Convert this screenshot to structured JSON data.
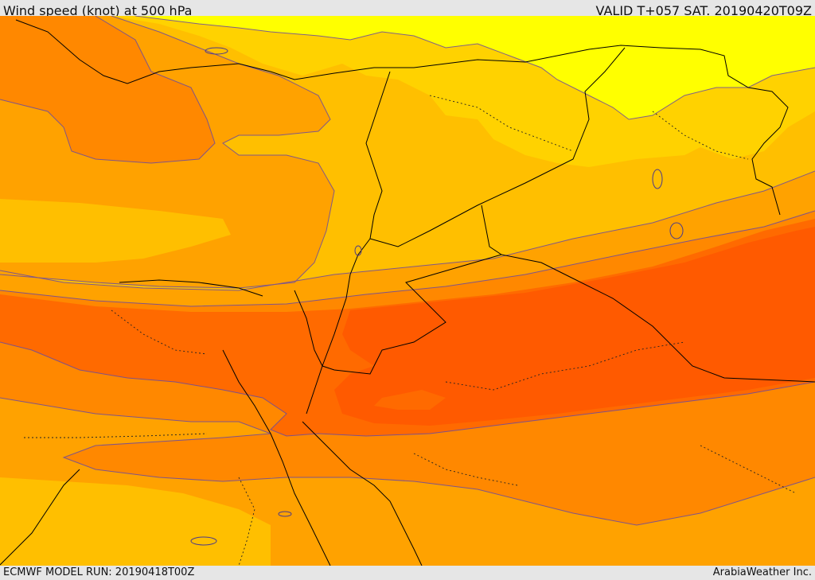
{
  "header": {
    "title": "Wind speed (knot) at 500 hPa",
    "valid": "VALID T+057 SAT. 20190420T09Z"
  },
  "footer": {
    "model_run": "ECMWF MODEL RUN: 20190418T00Z",
    "credit": "ArabiaWeather Inc."
  },
  "palette": {
    "yellow": "#ffff00",
    "gold": "#ffd200",
    "amber": "#ffbf00",
    "orange_light": "#ffa200",
    "orange": "#ff8800",
    "orange_dark": "#ff6a00",
    "red_orange": "#ff5a00",
    "contour": "#6a4aa0",
    "border": "#000000"
  }
}
